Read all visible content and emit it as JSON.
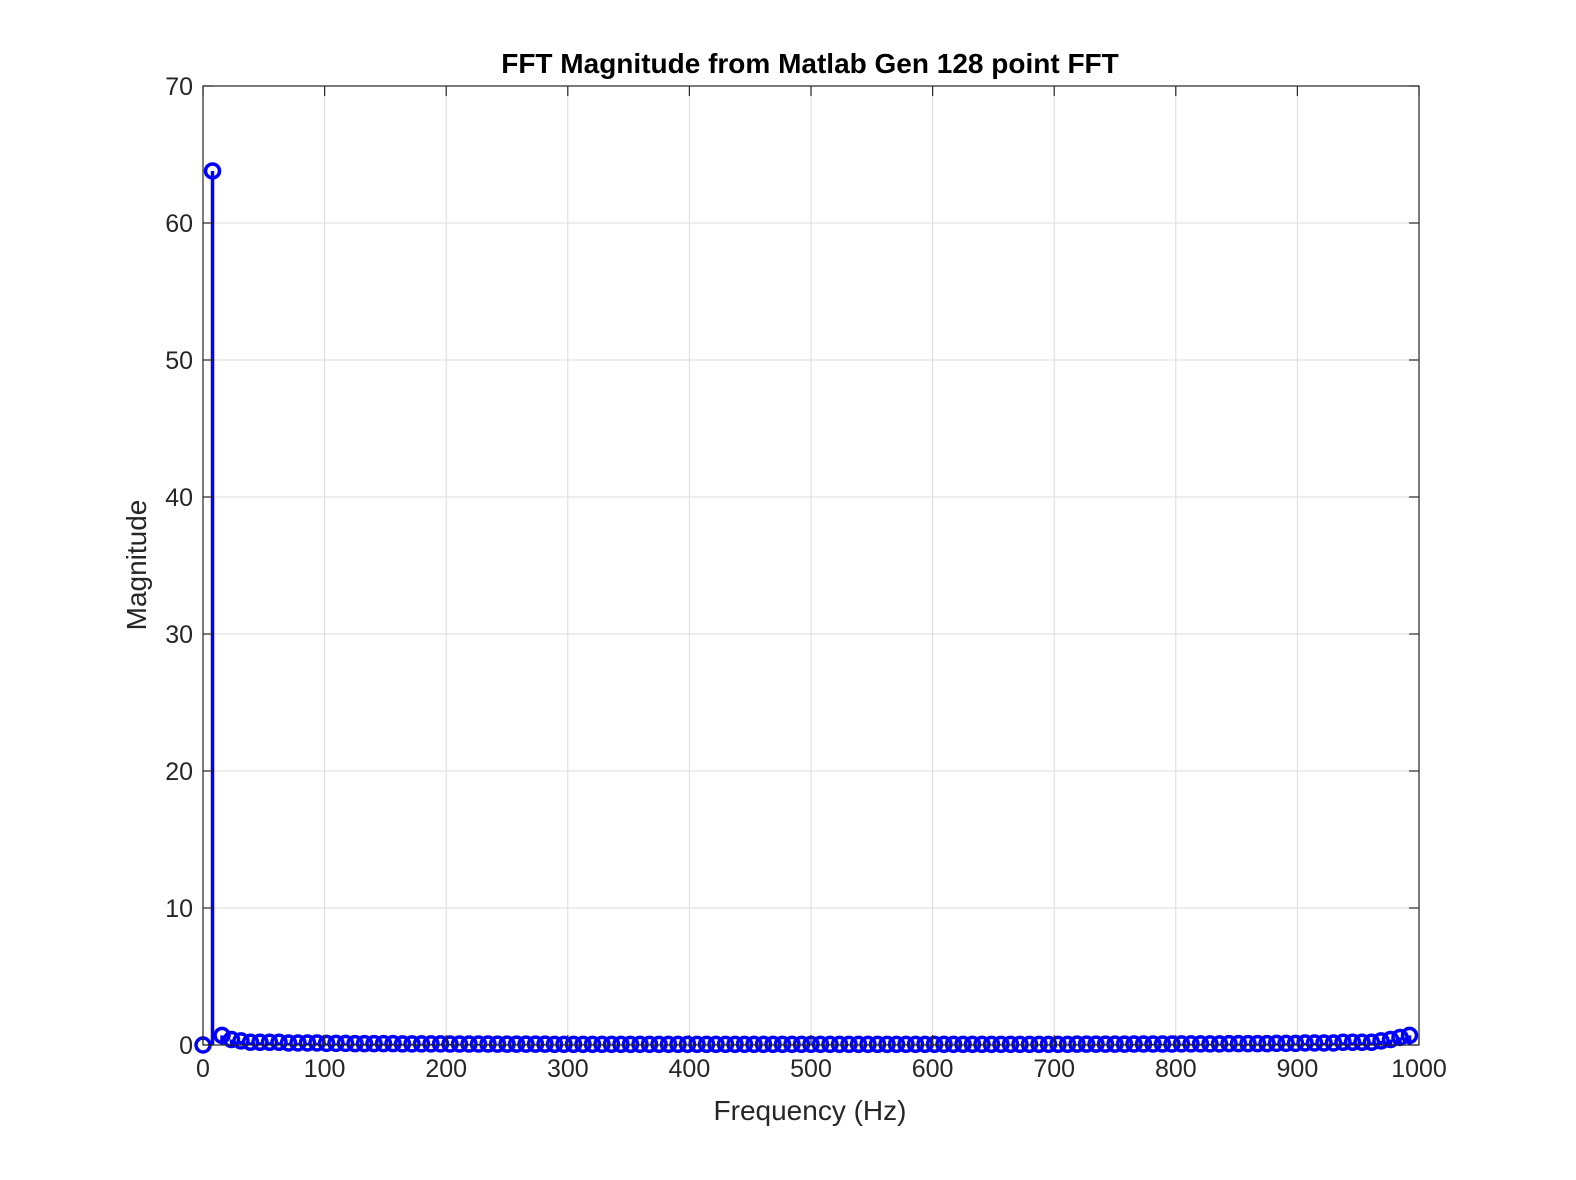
{
  "chart_data": {
    "type": "stem",
    "title": "FFT Magnitude from Matlab Gen 128 point FFT",
    "xlabel": "Frequency (Hz)",
    "ylabel": "Magnitude",
    "xlim": [
      0,
      1000
    ],
    "ylim": [
      0,
      70
    ],
    "xticks": [
      0,
      100,
      200,
      300,
      400,
      500,
      600,
      700,
      800,
      900,
      1000
    ],
    "yticks": [
      0,
      10,
      20,
      30,
      40,
      50,
      60,
      70
    ],
    "grid": true,
    "sample_rate_hz": 1000,
    "fft_points": 128,
    "bin_spacing_hz": 7.8125,
    "values": [
      0.0,
      63.8,
      0.7,
      0.4,
      0.3,
      0.2,
      0.2,
      0.2,
      0.2,
      0.15,
      0.15,
      0.15,
      0.15,
      0.12,
      0.12,
      0.12,
      0.1,
      0.1,
      0.1,
      0.1,
      0.1,
      0.08,
      0.08,
      0.08,
      0.08,
      0.08,
      0.07,
      0.07,
      0.07,
      0.07,
      0.07,
      0.06,
      0.06,
      0.06,
      0.06,
      0.06,
      0.06,
      0.05,
      0.05,
      0.05,
      0.05,
      0.05,
      0.05,
      0.05,
      0.05,
      0.05,
      0.05,
      0.05,
      0.05,
      0.05,
      0.05,
      0.05,
      0.05,
      0.05,
      0.05,
      0.05,
      0.05,
      0.05,
      0.05,
      0.05,
      0.05,
      0.05,
      0.05,
      0.05,
      0.05,
      0.05,
      0.05,
      0.05,
      0.05,
      0.05,
      0.05,
      0.05,
      0.05,
      0.05,
      0.05,
      0.05,
      0.05,
      0.05,
      0.05,
      0.05,
      0.05,
      0.05,
      0.05,
      0.05,
      0.05,
      0.05,
      0.05,
      0.05,
      0.05,
      0.05,
      0.05,
      0.05,
      0.06,
      0.06,
      0.06,
      0.06,
      0.06,
      0.06,
      0.07,
      0.07,
      0.07,
      0.07,
      0.07,
      0.08,
      0.08,
      0.08,
      0.08,
      0.08,
      0.1,
      0.1,
      0.1,
      0.1,
      0.1,
      0.12,
      0.12,
      0.12,
      0.15,
      0.15,
      0.15,
      0.15,
      0.2,
      0.2,
      0.2,
      0.2,
      0.3,
      0.4,
      0.55,
      0.7
    ]
  },
  "colors": {
    "stem": "#0000ff",
    "grid": "#dcdcdc",
    "axis": "#262626"
  }
}
